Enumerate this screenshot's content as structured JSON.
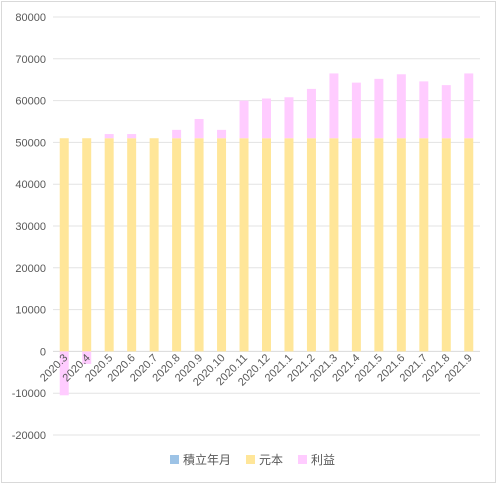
{
  "chart_data": {
    "type": "bar",
    "stacked": true,
    "categories": [
      "2020.3",
      "2020.4",
      "2020.5",
      "2020.6",
      "2020.7",
      "2020.8",
      "2020.9",
      "2020.10",
      "2020.11",
      "2020.12",
      "2021.1",
      "2021.2",
      "2021.3",
      "2021.4",
      "2021.5",
      "2021.6",
      "2021.7",
      "2021.8",
      "2021.9"
    ],
    "series": [
      {
        "name": "積立年月",
        "color": "#9dc3e6",
        "values": [
          0,
          0,
          0,
          0,
          0,
          0,
          0,
          0,
          0,
          0,
          0,
          0,
          0,
          0,
          0,
          0,
          0,
          0,
          0
        ]
      },
      {
        "name": "元本",
        "color": "#ffe699",
        "values": [
          51000,
          51000,
          51000,
          51000,
          51000,
          51000,
          51000,
          51000,
          51000,
          51000,
          51000,
          51000,
          51000,
          51000,
          51000,
          51000,
          51000,
          51000,
          51000
        ]
      },
      {
        "name": "利益",
        "color": "#ffccff",
        "values": [
          -10500,
          -3000,
          1000,
          1000,
          0,
          2000,
          4600,
          2000,
          9000,
          9500,
          9800,
          11800,
          15500,
          13300,
          14200,
          15300,
          13600,
          12700,
          15500
        ]
      }
    ],
    "ylim": [
      -20000,
      80000
    ],
    "yticks": [
      "80000",
      "70000",
      "60000",
      "50000",
      "40000",
      "30000",
      "20000",
      "10000",
      "0",
      "-10000",
      "-20000"
    ],
    "grid": true,
    "legend": "bottom"
  }
}
